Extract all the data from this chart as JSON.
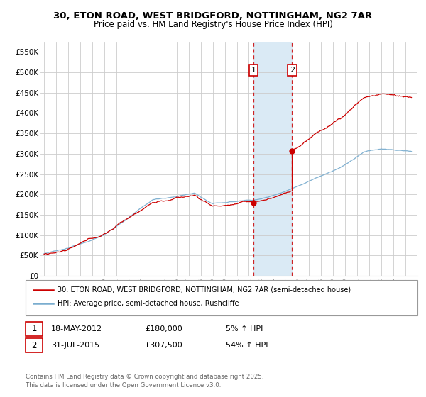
{
  "title_line1": "30, ETON ROAD, WEST BRIDGFORD, NOTTINGHAM, NG2 7AR",
  "title_line2": "Price paid vs. HM Land Registry's House Price Index (HPI)",
  "ylim": [
    0,
    575000
  ],
  "yticks": [
    0,
    50000,
    100000,
    150000,
    200000,
    250000,
    300000,
    350000,
    400000,
    450000,
    500000,
    550000
  ],
  "ytick_labels": [
    "£0",
    "£50K",
    "£100K",
    "£150K",
    "£200K",
    "£250K",
    "£300K",
    "£350K",
    "£400K",
    "£450K",
    "£500K",
    "£550K"
  ],
  "x_start_year": 1995,
  "x_end_year": 2025,
  "transaction1_year": 2012.38,
  "transaction1_price": 180000,
  "transaction2_year": 2015.58,
  "transaction2_price": 307500,
  "line1_color": "#cc0000",
  "line2_color": "#7aadcf",
  "shade_color": "#daeaf5",
  "grid_color": "#cccccc",
  "background_color": "#ffffff",
  "legend_label1": "30, ETON ROAD, WEST BRIDGFORD, NOTTINGHAM, NG2 7AR (semi-detached house)",
  "legend_label2": "HPI: Average price, semi-detached house, Rushcliffe",
  "footer": "Contains HM Land Registry data © Crown copyright and database right 2025.\nThis data is licensed under the Open Government Licence v3.0."
}
